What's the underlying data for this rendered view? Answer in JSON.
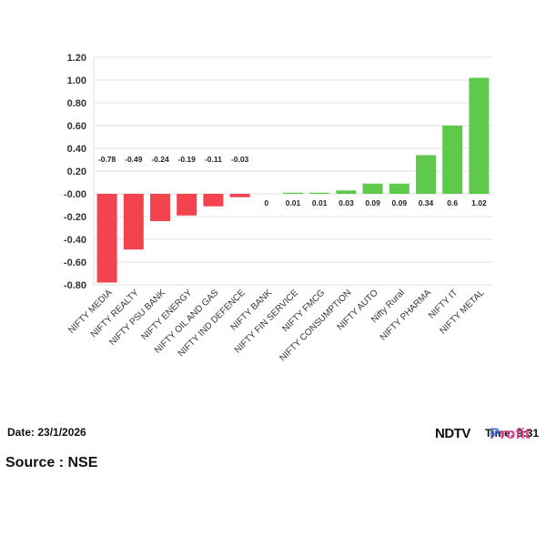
{
  "chart_data": {
    "type": "bar",
    "categories": [
      "NIFTY MEDIA",
      "NIFTY REALTY",
      "NIFTY PSU BANK",
      "NIFTY ENERGY",
      "NIFTY OIL AND GAS",
      "NIFTY IND DEFENCE",
      "NIFTY BANK",
      "NIFTY FIN SERVICE",
      "NIFTY FMCG",
      "NIFTY CONSUMPTION",
      "NIFTY AUTO",
      "Nifty Rural",
      "NIFTY PHARMA",
      "NIFTY IT",
      "NIFTY METAL"
    ],
    "values": [
      -0.78,
      -0.49,
      -0.24,
      -0.19,
      -0.11,
      -0.03,
      0,
      0.01,
      0.01,
      0.03,
      0.09,
      0.09,
      0.34,
      0.6,
      1.02
    ],
    "value_labels": [
      "-0.78",
      "-0.49",
      "-0.24",
      "-0.19",
      "-0.11",
      "-0.03",
      "0",
      "0.01",
      "0.01",
      "0.03",
      "0.09",
      "0.09",
      "0.34",
      "0.6",
      "1.02"
    ],
    "yticks": [
      1.2,
      1.0,
      0.8,
      0.6,
      0.4,
      0.2,
      0.0,
      -0.2,
      -0.4,
      -0.6,
      -0.8
    ],
    "ytick_labels": [
      "1.20",
      "1.00",
      "0.80",
      "0.60",
      "0.40",
      "0.20",
      "-0.00",
      "-0.20",
      "-0.40",
      "-0.60",
      "-0.80"
    ],
    "ylim": [
      -0.8,
      1.2
    ],
    "grid": true,
    "colors": {
      "positive": "#5ec94b",
      "negative": "#f2434f"
    }
  },
  "footer": {
    "date": "Date: 23/1/2026",
    "source": "Source : NSE"
  },
  "brand": {
    "ndtv": "NDTV",
    "time": "Time: 9:31",
    "profit_first": "P",
    "profit_rest": "rofit"
  }
}
